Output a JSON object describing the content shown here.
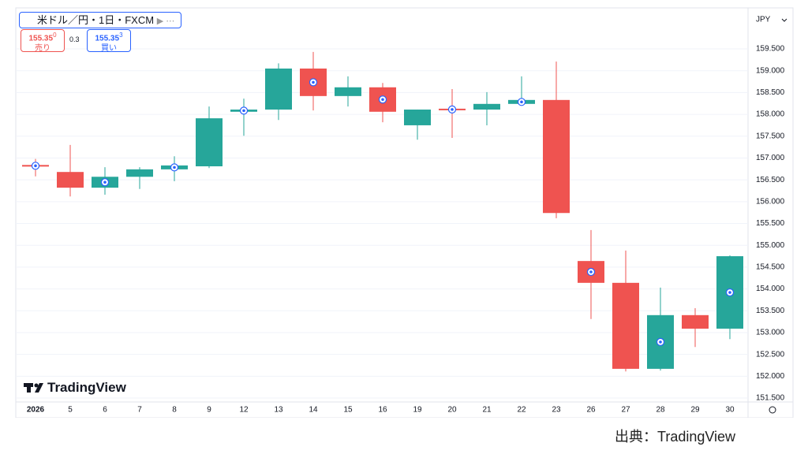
{
  "chart_data": {
    "type": "candlestick",
    "symbol": "米ドル／円・1日・FXCM",
    "sell_price": "155.35",
    "sell_price_sup": "0",
    "sell_label": "売り",
    "spread": 0.3,
    "buy_price": "155.35",
    "buy_price_sup": "3",
    "buy_label": "買い",
    "currency": "JPY",
    "watermark": "TradingView",
    "source": "出典：TradingView",
    "up_color": "#26a69a",
    "down_color": "#ef5350",
    "categories": [
      "2026",
      "5",
      "6",
      "7",
      "8",
      "9",
      "12",
      "13",
      "14",
      "15",
      "16",
      "19",
      "20",
      "21",
      "22",
      "23",
      "26",
      "27",
      "28",
      "29",
      "30"
    ],
    "open": [
      156.84,
      156.68,
      156.32,
      156.57,
      156.74,
      156.81,
      158.06,
      158.11,
      159.05,
      158.42,
      158.62,
      157.75,
      158.13,
      158.11,
      158.24,
      158.33,
      154.64,
      154.14,
      152.17,
      153.4,
      153.09
    ],
    "high": [
      156.98,
      157.3,
      156.79,
      156.79,
      157.04,
      158.18,
      158.36,
      159.17,
      159.43,
      158.87,
      158.72,
      158.11,
      158.58,
      158.51,
      158.87,
      159.21,
      155.35,
      154.88,
      154.03,
      153.56,
      154.77
    ],
    "low": [
      156.58,
      156.12,
      156.16,
      156.29,
      156.47,
      156.77,
      157.51,
      157.87,
      158.09,
      158.18,
      157.82,
      157.42,
      157.46,
      157.75,
      158.24,
      155.62,
      153.31,
      152.11,
      152.13,
      152.67,
      152.85
    ],
    "close": [
      156.81,
      156.32,
      156.57,
      156.74,
      156.83,
      157.91,
      158.11,
      159.05,
      158.42,
      158.62,
      158.06,
      158.11,
      158.11,
      158.24,
      158.33,
      155.74,
      154.14,
      152.17,
      153.4,
      153.09,
      154.75
    ],
    "ylim": [
      151.41,
      160.44
    ],
    "yticks": [
      {
        "value": 151.5,
        "label": "151.500"
      },
      {
        "value": 152,
        "label": "152.000"
      },
      {
        "value": 152.5,
        "label": "152.500"
      },
      {
        "value": 153,
        "label": "153.000"
      },
      {
        "value": 153.5,
        "label": "153.500"
      },
      {
        "value": 154,
        "label": "154.000"
      },
      {
        "value": 154.5,
        "label": "154.500"
      },
      {
        "value": 155,
        "label": "155.000"
      },
      {
        "value": 155.5,
        "label": "155.500"
      },
      {
        "value": 156,
        "label": "156.000"
      },
      {
        "value": 156.5,
        "label": "156.500"
      },
      {
        "value": 157,
        "label": "157.000"
      },
      {
        "value": 157.5,
        "label": "157.500"
      },
      {
        "value": 158,
        "label": "158.000"
      },
      {
        "value": 158.5,
        "label": "158.500"
      },
      {
        "value": 159,
        "label": "159.000"
      },
      {
        "value": 159.5,
        "label": "159.500"
      }
    ],
    "grid": true
  }
}
